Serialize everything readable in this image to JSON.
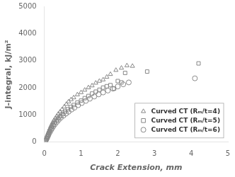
{
  "chart_data": {
    "type": "scatter",
    "xlabel": "Crack Extension, mm",
    "ylabel": "J-integral, kJ/m²",
    "xlim": [
      0,
      5
    ],
    "ylim": [
      0,
      5000
    ],
    "xticks": [
      0,
      1,
      2,
      3,
      4,
      5
    ],
    "yticks": [
      0,
      1000,
      2000,
      3000,
      4000,
      5000
    ],
    "grid": false,
    "legend": "lower right",
    "series": [
      {
        "name": "Curved CT (Rₘ/t=4)",
        "marker": "triangle",
        "color": "#888888",
        "x": [
          0.04,
          0.06,
          0.08,
          0.1,
          0.12,
          0.14,
          0.16,
          0.18,
          0.2,
          0.23,
          0.26,
          0.3,
          0.34,
          0.38,
          0.43,
          0.48,
          0.54,
          0.6,
          0.66,
          0.73,
          0.8,
          0.9,
          1.0,
          1.1,
          1.2,
          1.3,
          1.4,
          1.5,
          1.6,
          1.7,
          1.8,
          1.95,
          2.1,
          2.25,
          2.4
        ],
        "values": [
          100,
          160,
          230,
          310,
          380,
          450,
          520,
          590,
          650,
          730,
          800,
          880,
          960,
          1040,
          1120,
          1200,
          1300,
          1400,
          1490,
          1570,
          1640,
          1750,
          1830,
          1920,
          2010,
          2080,
          2180,
          2250,
          2300,
          2400,
          2500,
          2650,
          2730,
          2820,
          2800
        ]
      },
      {
        "name": "Curved CT (Rₘ/t=5)",
        "marker": "square",
        "color": "#888888",
        "x": [
          0.04,
          0.06,
          0.08,
          0.1,
          0.12,
          0.14,
          0.17,
          0.2,
          0.24,
          0.28,
          0.33,
          0.38,
          0.44,
          0.5,
          0.57,
          0.64,
          0.72,
          0.8,
          0.9,
          1.0,
          1.1,
          1.2,
          1.3,
          1.4,
          1.5,
          1.6,
          1.7,
          1.8,
          1.9,
          2.0,
          2.1,
          2.2,
          2.8,
          4.2
        ],
        "values": [
          80,
          140,
          200,
          270,
          340,
          410,
          490,
          560,
          640,
          720,
          800,
          880,
          960,
          1040,
          1130,
          1210,
          1300,
          1370,
          1460,
          1530,
          1620,
          1700,
          1790,
          1860,
          1930,
          2010,
          2060,
          2100,
          1970,
          2250,
          2200,
          2550,
          2600,
          2900
        ]
      },
      {
        "name": "Curved CT (Rₘ/t=6)",
        "marker": "circle",
        "color": "#888888",
        "x": [
          0.04,
          0.06,
          0.08,
          0.1,
          0.12,
          0.15,
          0.18,
          0.21,
          0.25,
          0.29,
          0.34,
          0.39,
          0.45,
          0.52,
          0.59,
          0.66,
          0.74,
          0.82,
          0.92,
          1.02,
          1.13,
          1.24,
          1.36,
          1.48,
          1.6,
          1.73,
          1.87,
          2.0,
          2.15,
          2.3,
          4.1
        ],
        "values": [
          65,
          115,
          170,
          230,
          295,
          370,
          440,
          510,
          590,
          665,
          745,
          820,
          900,
          975,
          1050,
          1120,
          1200,
          1270,
          1360,
          1440,
          1520,
          1600,
          1680,
          1760,
          1830,
          1900,
          1970,
          2050,
          2130,
          2200,
          2350
        ]
      }
    ]
  }
}
